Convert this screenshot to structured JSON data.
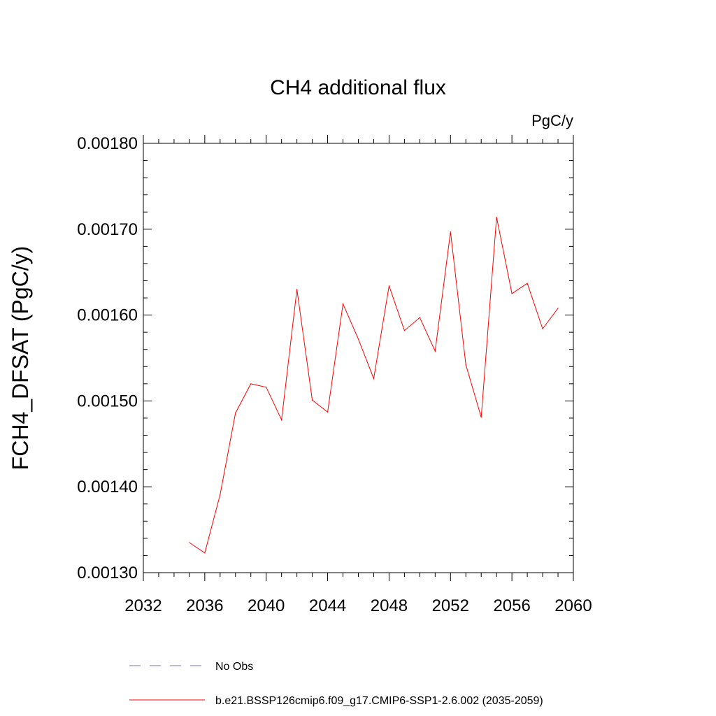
{
  "chart_data": {
    "type": "line",
    "title": "CH4 additional flux",
    "units_label": "PgC/y",
    "xlabel": "",
    "ylabel": "FCH4_DFSAT  (PgC/y)",
    "xlim": [
      2032,
      2060
    ],
    "ylim": [
      0.0013,
      0.0018
    ],
    "xticks": [
      2032,
      2036,
      2040,
      2044,
      2048,
      2052,
      2056,
      2060
    ],
    "xtick_labels": [
      "2032",
      "2036",
      "2040",
      "2044",
      "2048",
      "2052",
      "2056",
      "2060"
    ],
    "yticks": [
      0.0013,
      0.0014,
      0.0015,
      0.0016,
      0.0017,
      0.0018
    ],
    "ytick_labels": [
      "0.00130",
      "0.00140",
      "0.00150",
      "0.00160",
      "0.00170",
      "0.00180"
    ],
    "grid": false,
    "legend_position": "bottom",
    "series": [
      {
        "name": "No Obs",
        "color": "#7b6fb5",
        "style": "dashed",
        "x": [],
        "values": []
      },
      {
        "name": "b.e21.BSSP126cmip6.f09_g17.CMIP6-SSP1-2.6.002 (2035-2059)",
        "color": "#ff0000",
        "style": "solid",
        "x": [
          2035,
          2036,
          2037,
          2038,
          2039,
          2040,
          2041,
          2042,
          2043,
          2044,
          2045,
          2046,
          2047,
          2048,
          2049,
          2050,
          2051,
          2052,
          2053,
          2054,
          2055,
          2056,
          2057,
          2058,
          2059
        ],
        "values": [
          0.001335,
          0.001323,
          0.001391,
          0.001486,
          0.00152,
          0.001516,
          0.001478,
          0.00163,
          0.001501,
          0.001487,
          0.001613,
          0.001572,
          0.001526,
          0.001634,
          0.001582,
          0.001597,
          0.001558,
          0.001697,
          0.001542,
          0.001481,
          0.001714,
          0.001625,
          0.001637,
          0.001584,
          0.001608
        ]
      }
    ]
  }
}
